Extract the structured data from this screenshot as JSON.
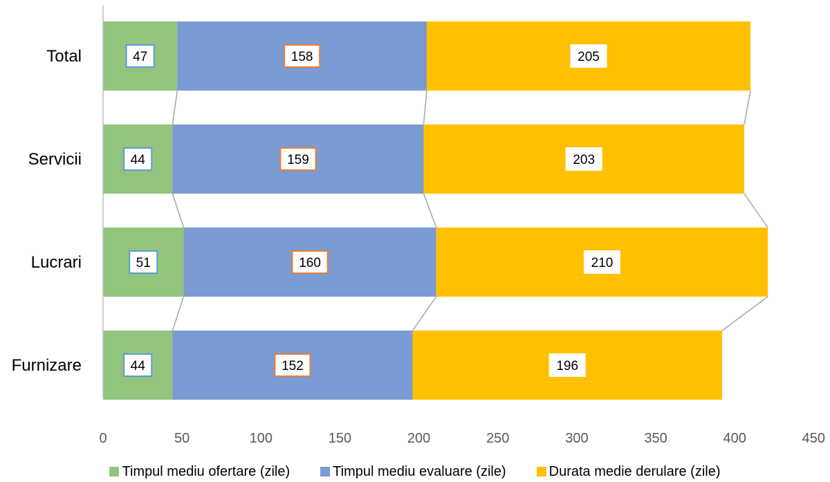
{
  "chart_data": {
    "type": "bar",
    "orientation": "horizontal",
    "stacked": true,
    "categories": [
      "Total",
      "Servicii",
      "Lucrari",
      "Furnizare"
    ],
    "series": [
      {
        "name": "Timpul mediu ofertare (zile)",
        "values": [
          47,
          44,
          51,
          44
        ],
        "color": "#93c47d",
        "label_border": "#5b9bd5"
      },
      {
        "name": "Timpul mediu evaluare (zile)",
        "values": [
          158,
          159,
          160,
          152
        ],
        "color": "#7a9bd3",
        "label_border": "#ed7d31"
      },
      {
        "name": "Durata medie derulare (zile)",
        "values": [
          205,
          203,
          210,
          196
        ],
        "color": "#ffc000",
        "label_border": "#ffffff"
      }
    ],
    "xlim": [
      0,
      450
    ],
    "x_ticks": [
      "0",
      "50",
      "100",
      "150",
      "200",
      "250",
      "300",
      "350",
      "400",
      "450"
    ],
    "series_lines": true,
    "legend_position": "bottom",
    "grid": false
  }
}
